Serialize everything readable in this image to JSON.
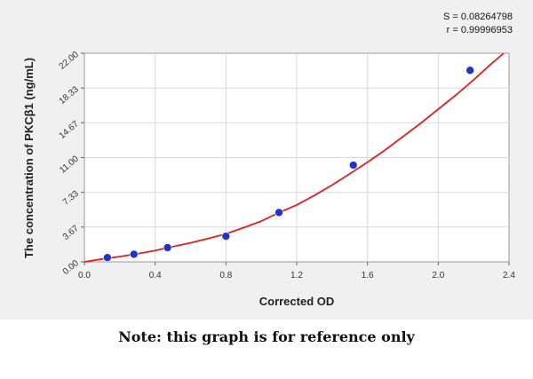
{
  "chart_data": {
    "type": "scatter",
    "title": "",
    "xlabel": "Corrected OD",
    "ylabel": "The concentration of PKCβ1 (ng/mL)",
    "xlim": [
      0.0,
      2.4
    ],
    "ylim": [
      0.0,
      22.0
    ],
    "x_ticks": [
      0.0,
      0.4,
      0.8,
      1.2,
      1.6,
      2.0,
      2.4
    ],
    "x_tick_labels": [
      "0.0",
      "0.4",
      "0.8",
      "1.2",
      "1.6",
      "2.0",
      "2.4"
    ],
    "y_ticks": [
      0.0,
      3.67,
      7.33,
      11.0,
      14.67,
      18.33,
      22.0
    ],
    "y_tick_labels": [
      "0.00",
      "3.67",
      "7.33",
      "11.00",
      "14.67",
      "18.33",
      "22.00"
    ],
    "grid": true,
    "series": [
      {
        "type": "scatter",
        "color": "#2233cc",
        "x": [
          0.13,
          0.28,
          0.47,
          0.8,
          1.1,
          1.52,
          2.18
        ],
        "y": [
          0.45,
          0.8,
          1.5,
          2.7,
          5.2,
          10.2,
          20.2
        ]
      },
      {
        "type": "line",
        "color": "#e02020",
        "x": [
          0.0,
          0.1,
          0.2,
          0.3,
          0.4,
          0.5,
          0.6,
          0.7,
          0.8,
          0.9,
          1.0,
          1.1,
          1.2,
          1.3,
          1.4,
          1.5,
          1.6,
          1.7,
          1.8,
          1.9,
          2.0,
          2.1,
          2.2,
          2.3,
          2.37
        ],
        "y": [
          0.0,
          0.3,
          0.55,
          0.85,
          1.2,
          1.6,
          2.0,
          2.45,
          2.95,
          3.6,
          4.3,
          5.2,
          6.0,
          7.0,
          8.1,
          9.3,
          10.5,
          11.8,
          13.2,
          14.6,
          16.1,
          17.6,
          19.2,
          20.9,
          22.0
        ]
      }
    ],
    "annotations": {
      "s": "S = 0.08264798",
      "r": "r = 0.99996953"
    }
  },
  "note": "Note: this graph is for reference only"
}
